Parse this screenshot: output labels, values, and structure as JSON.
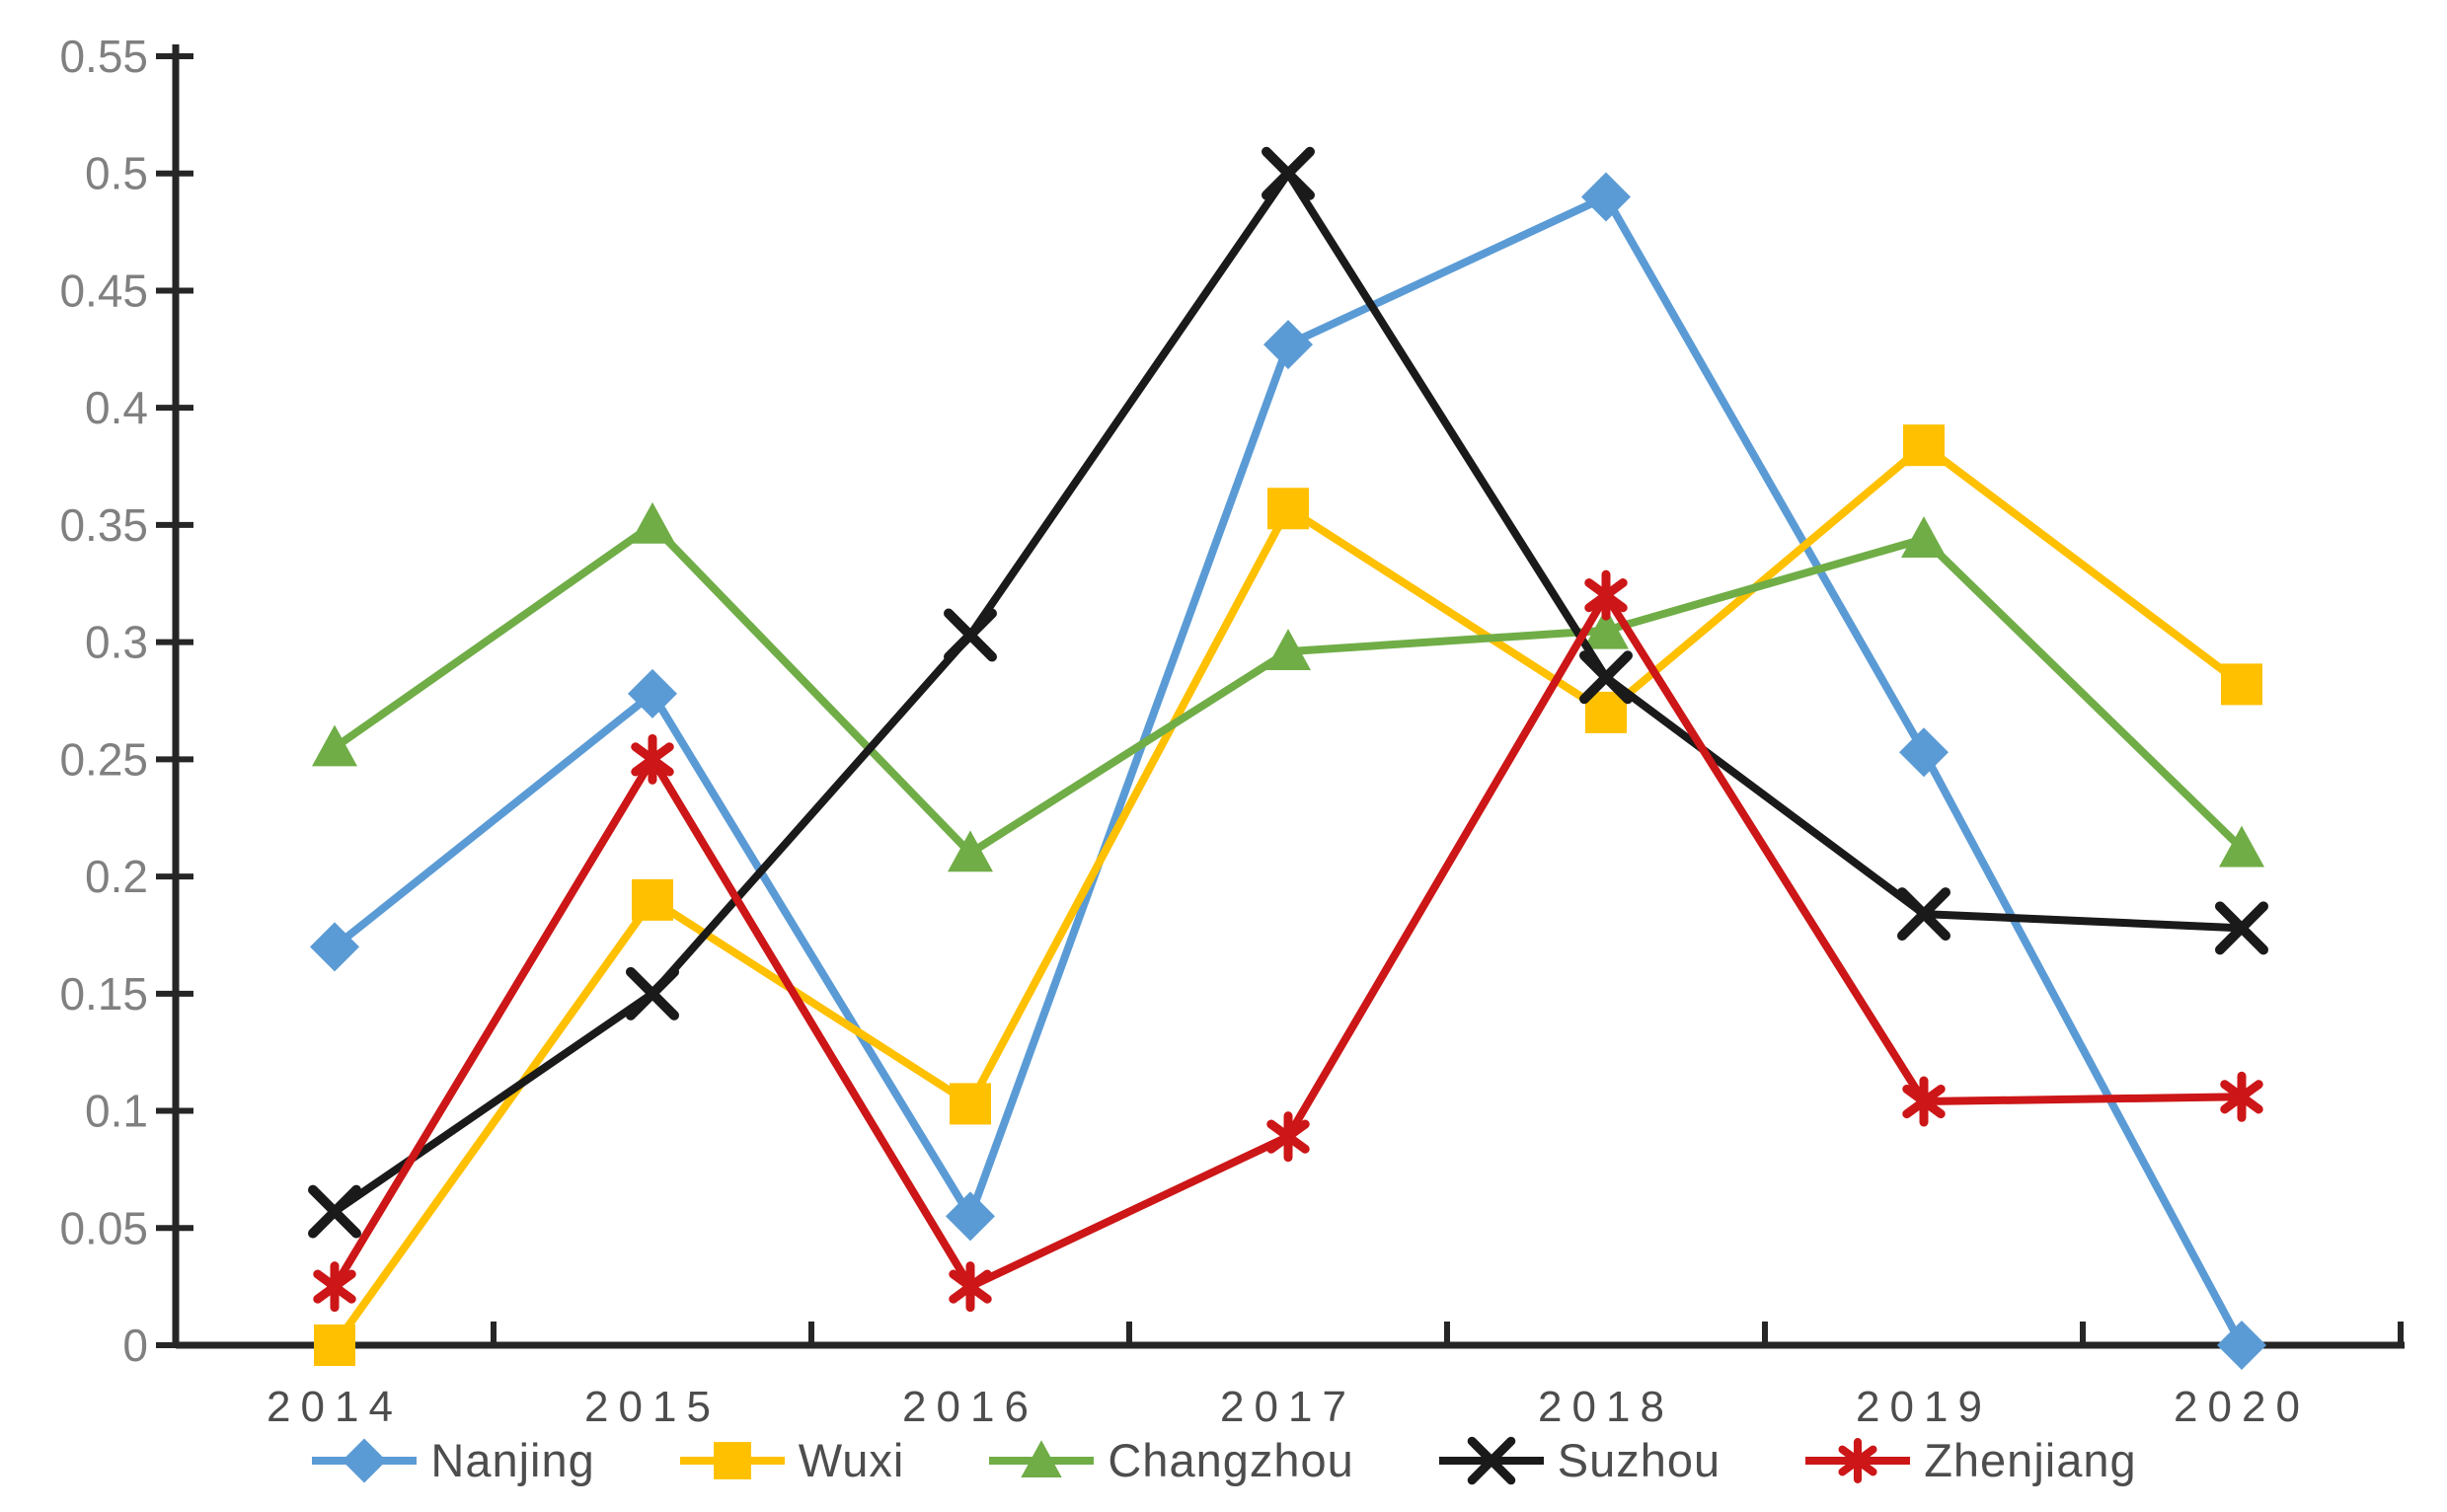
{
  "chart_data": {
    "type": "line",
    "title": "",
    "xlabel": "",
    "ylabel": "",
    "categories": [
      "2014",
      "2015",
      "2016",
      "2017",
      "2018",
      "2019",
      "2020"
    ],
    "series": [
      {
        "name": "Nanjing",
        "color": "#5B9BD5",
        "marker": "diamond",
        "values": [
          0.17,
          0.278,
          0.055,
          0.427,
          0.49,
          0.253,
          0.0
        ]
      },
      {
        "name": "Wuxi",
        "color": "#FFC000",
        "marker": "square",
        "values": [
          0.0,
          0.19,
          0.103,
          0.357,
          0.27,
          0.384,
          0.282
        ]
      },
      {
        "name": "Changzhou",
        "color": "#70AD47",
        "marker": "triangle",
        "values": [
          0.255,
          0.35,
          0.21,
          0.296,
          0.305,
          0.344,
          0.212
        ]
      },
      {
        "name": "Suzhou",
        "color": "#1a1a1a",
        "marker": "x",
        "values": [
          0.057,
          0.15,
          0.303,
          0.5,
          0.285,
          0.184,
          0.178
        ]
      },
      {
        "name": "Zhenjiang",
        "color": "#CC1617",
        "marker": "asterisk",
        "values": [
          0.025,
          0.25,
          0.025,
          0.089,
          0.32,
          0.104,
          0.106
        ]
      }
    ],
    "ylim": [
      0,
      0.55
    ],
    "ytick_step": 0.05,
    "ytick_labels": [
      "0",
      "0.05",
      "0.1",
      "0.15",
      "0.2",
      "0.25",
      "0.3",
      "0.35",
      "0.4",
      "0.45",
      "0.5",
      "0.55"
    ],
    "grid": false,
    "legend_position": "bottom",
    "axis_color": "#262626",
    "ytick_label_color": "#808080",
    "xtick_label_color": "#4d4d4d",
    "legend_text_color": "#4d4d4d"
  }
}
